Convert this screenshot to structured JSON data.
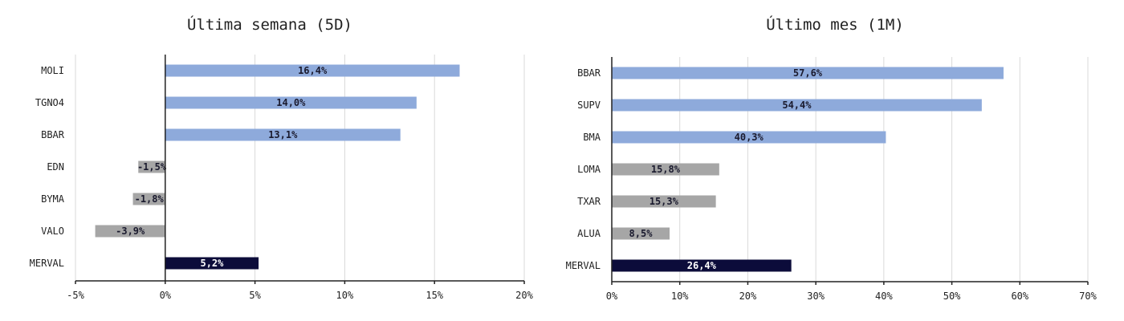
{
  "chart_data": [
    {
      "type": "bar",
      "orientation": "horizontal",
      "title": "Última semana (5D)",
      "categories": [
        "MOLI",
        "TGNO4",
        "BBAR",
        "EDN",
        "BYMA",
        "VALO",
        "MERVAL"
      ],
      "values": [
        16.4,
        14.0,
        13.1,
        -1.5,
        -1.8,
        -3.9,
        5.2
      ],
      "labels": [
        "16,4%",
        "14,0%",
        "13,1%",
        "-1,5%",
        "-1,8%",
        "-3,9%",
        "5,2%"
      ],
      "colors": [
        "#8eaadb",
        "#8eaadb",
        "#8eaadb",
        "#a6a6a6",
        "#a6a6a6",
        "#a6a6a6",
        "#0c0c3a"
      ],
      "xlim": [
        -5,
        20
      ],
      "ticks": [
        -5,
        0,
        5,
        10,
        15,
        20
      ],
      "tick_labels": [
        "-5%",
        "0%",
        "5%",
        "10%",
        "15%",
        "20%"
      ],
      "grid": true
    },
    {
      "type": "bar",
      "orientation": "horizontal",
      "title": "Último mes (1M)",
      "categories": [
        "BBAR",
        "SUPV",
        "BMA",
        "LOMA",
        "TXAR",
        "ALUA",
        "MERVAL"
      ],
      "values": [
        57.6,
        54.4,
        40.3,
        15.8,
        15.3,
        8.5,
        26.4
      ],
      "labels": [
        "57,6%",
        "54,4%",
        "40,3%",
        "15,8%",
        "15,3%",
        "8,5%",
        "26,4%"
      ],
      "colors": [
        "#8eaadb",
        "#8eaadb",
        "#8eaadb",
        "#a6a6a6",
        "#a6a6a6",
        "#a6a6a6",
        "#0c0c3a"
      ],
      "xlim": [
        0,
        70
      ],
      "ticks": [
        0,
        10,
        20,
        30,
        40,
        50,
        60,
        70
      ],
      "tick_labels": [
        "0%",
        "10%",
        "20%",
        "30%",
        "40%",
        "50%",
        "60%",
        "70%"
      ],
      "grid": true
    }
  ]
}
